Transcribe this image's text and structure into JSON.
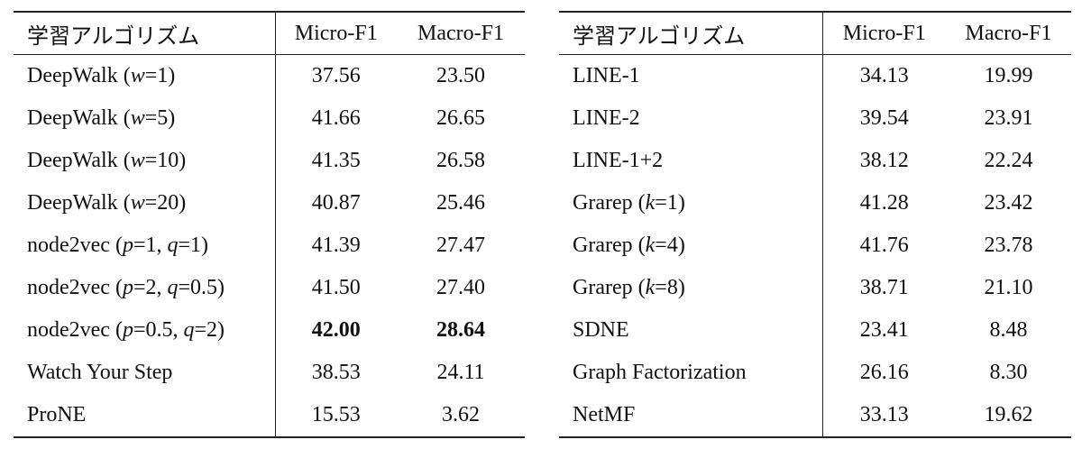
{
  "tables": [
    {
      "header": [
        "学習アルゴリズム",
        "Micro-F1",
        "Macro-F1"
      ],
      "rows": [
        [
          "DeepWalk (w=1)",
          "37.56",
          "23.50"
        ],
        [
          "DeepWalk (w=5)",
          "41.66",
          "26.65"
        ],
        [
          "DeepWalk (w=10)",
          "41.35",
          "26.58"
        ],
        [
          "DeepWalk (w=20)",
          "40.87",
          "25.46"
        ],
        [
          "node2vec (p=1, q=1)",
          "41.39",
          "27.47"
        ],
        [
          "node2vec (p=2, q=0.5)",
          "41.50",
          "27.40"
        ],
        [
          "node2vec (p=0.5, q=2)",
          "42.00",
          "28.64"
        ],
        [
          "Watch Your Step",
          "38.53",
          "24.11"
        ],
        [
          "ProNE",
          "15.53",
          "3.62"
        ]
      ],
      "bold_cells": [
        [
          6,
          1
        ],
        [
          6,
          2
        ]
      ]
    },
    {
      "header": [
        "学習アルゴリズム",
        "Micro-F1",
        "Macro-F1"
      ],
      "rows": [
        [
          "LINE-1",
          "34.13",
          "19.99"
        ],
        [
          "LINE-2",
          "39.54",
          "23.91"
        ],
        [
          "LINE-1+2",
          "38.12",
          "22.24"
        ],
        [
          "Grarep (k=1)",
          "41.28",
          "23.42"
        ],
        [
          "Grarep (k=4)",
          "41.76",
          "23.78"
        ],
        [
          "Grarep (k=8)",
          "38.71",
          "21.10"
        ],
        [
          "SDNE",
          "23.41",
          "8.48"
        ],
        [
          "Graph Factorization",
          "26.16",
          "8.30"
        ],
        [
          "NetMF",
          "33.13",
          "19.62"
        ]
      ],
      "bold_cells": []
    }
  ]
}
